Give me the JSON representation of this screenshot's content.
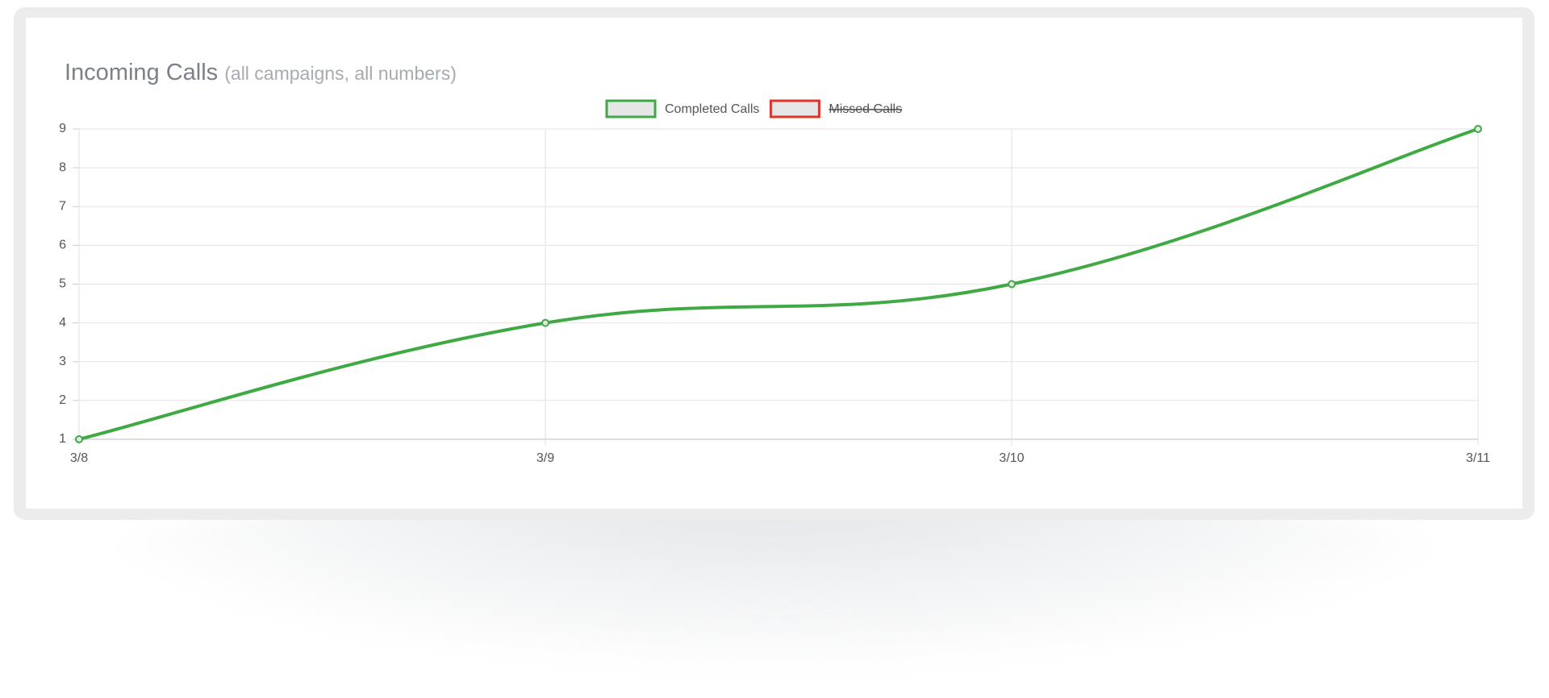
{
  "chart_data": {
    "type": "line",
    "title": "Incoming Calls",
    "subtitle": "(all campaigns, all numbers)",
    "categories": [
      "3/8",
      "3/9",
      "3/10",
      "3/11"
    ],
    "series": [
      {
        "name": "Completed Calls",
        "color": "#3fa944",
        "values": [
          1,
          4,
          5,
          9
        ]
      },
      {
        "name": "Missed Calls",
        "color": "#e0342a",
        "values": [
          null,
          null,
          null,
          null
        ],
        "hidden": true
      }
    ],
    "ylim": [
      1,
      9
    ],
    "yticks": [
      1,
      2,
      3,
      4,
      5,
      6,
      7,
      8,
      9
    ],
    "grid": true,
    "legend": "top"
  }
}
